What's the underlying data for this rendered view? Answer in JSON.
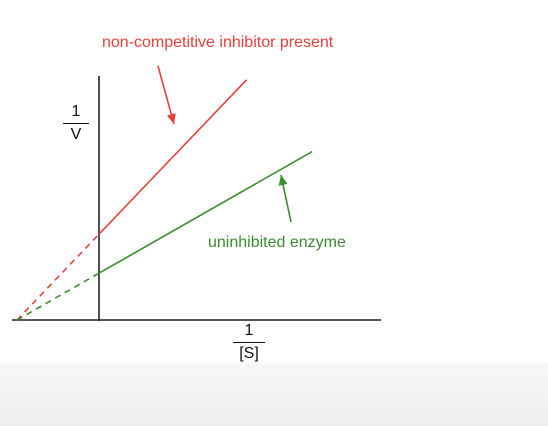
{
  "chart_data": {
    "type": "line",
    "title": "",
    "xlabel": {
      "numerator": "1",
      "denominator": "[S]"
    },
    "ylabel": {
      "numerator": "1",
      "denominator": "V"
    },
    "x_origin_line": true,
    "grid": false,
    "xlim": [
      -1,
      3.5
    ],
    "ylim": [
      0,
      3.5
    ],
    "series": [
      {
        "name": "non-competitive inhibitor present",
        "color": "#e8403a",
        "x_intercept": -1,
        "y_intercept": 1.1,
        "x_end": 1.8,
        "annotation": "non-competitive inhibitor present"
      },
      {
        "name": "uninhibited enzyme",
        "color": "#3a8c2f",
        "x_intercept": -1,
        "y_intercept": 0.6,
        "x_end": 2.6,
        "annotation": "uninhibited enzyme"
      }
    ]
  }
}
